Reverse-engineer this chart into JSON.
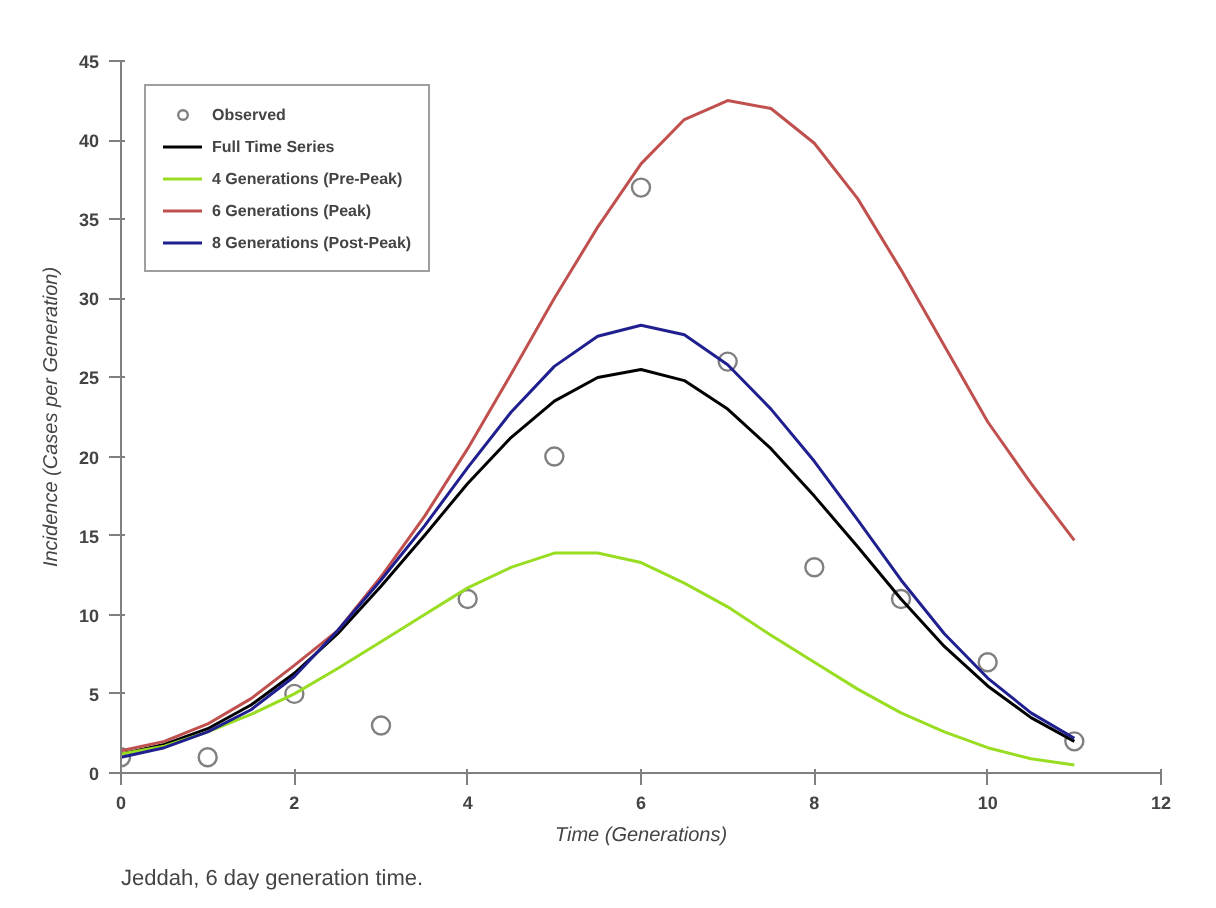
{
  "chart_data": {
    "type": "line",
    "xlabel": "Time (Generations)",
    "ylabel": "Incidence (Cases per Generation)",
    "xlim": [
      0,
      12
    ],
    "ylim": [
      0,
      45
    ],
    "xticks": [
      0,
      2,
      4,
      6,
      8,
      10,
      12
    ],
    "yticks": [
      0,
      5,
      10,
      15,
      20,
      25,
      30,
      35,
      40,
      45
    ],
    "grid": false,
    "legend": "top left",
    "annotations": [
      "Jeddah, 6 day generation time."
    ],
    "series": [
      {
        "name": "Observed",
        "type": "scatter",
        "marker": "circle",
        "color": "#808080",
        "x": [
          0,
          1,
          2,
          3,
          4,
          5,
          6,
          7,
          8,
          9,
          10,
          11
        ],
        "values": [
          1,
          1,
          5,
          3,
          11,
          20,
          37,
          26,
          13,
          11,
          7,
          2
        ]
      },
      {
        "name": "Full Time Series",
        "color": "#000000",
        "x": [
          0,
          0.5,
          1,
          1.5,
          2,
          2.5,
          3,
          3.5,
          4,
          4.5,
          5,
          5.5,
          6,
          6.5,
          7,
          7.5,
          8,
          8.5,
          9,
          9.5,
          10,
          10.5,
          11
        ],
        "values": [
          1.2,
          1.8,
          2.8,
          4.3,
          6.3,
          8.8,
          11.8,
          15,
          18.3,
          21.2,
          23.5,
          25,
          25.5,
          24.8,
          23,
          20.5,
          17.5,
          14.3,
          11,
          8,
          5.5,
          3.5,
          2
        ]
      },
      {
        "name": "4 Generations (Pre-Peak)",
        "color": "#99dd22",
        "x": [
          0,
          0.5,
          1,
          1.5,
          2,
          2.5,
          3,
          3.5,
          4,
          4.5,
          5,
          5.5,
          6,
          6.5,
          7,
          7.5,
          8,
          8.5,
          9,
          9.5,
          10,
          10.5,
          11
        ],
        "values": [
          1.2,
          1.7,
          2.6,
          3.7,
          5,
          6.6,
          8.3,
          10,
          11.7,
          13,
          13.9,
          13.9,
          13.3,
          12,
          10.5,
          8.7,
          7,
          5.3,
          3.8,
          2.6,
          1.6,
          0.9,
          0.5
        ]
      },
      {
        "name": "6 Generations (Peak)",
        "color": "#c0504d",
        "x": [
          0,
          0.5,
          1,
          1.5,
          2,
          2.5,
          3,
          3.5,
          4,
          4.5,
          5,
          5.5,
          6,
          6.5,
          7,
          7.5,
          8,
          8.5,
          9,
          9.5,
          10,
          10.5,
          11
        ],
        "values": [
          1.4,
          2.0,
          3.1,
          4.7,
          6.8,
          9,
          12.4,
          16.2,
          20.5,
          25.2,
          30,
          34.5,
          38.5,
          41.3,
          42.5,
          42,
          39.8,
          36.3,
          31.8,
          27,
          22.2,
          18.3,
          14.7
        ]
      },
      {
        "name": "8 Generations (Post-Peak)",
        "color": "#1f1f8f",
        "x": [
          0,
          0.5,
          1,
          1.5,
          2,
          2.5,
          3,
          3.5,
          4,
          4.5,
          5,
          5.5,
          6,
          6.5,
          7,
          7.5,
          8,
          8.5,
          9,
          9.5,
          10,
          10.5,
          11
        ],
        "values": [
          1.0,
          1.6,
          2.6,
          4.0,
          6.1,
          9,
          12.2,
          15.6,
          19.3,
          22.8,
          25.7,
          27.6,
          28.3,
          27.7,
          25.8,
          23,
          19.7,
          16,
          12.2,
          8.8,
          6,
          3.8,
          2.2
        ]
      }
    ]
  }
}
